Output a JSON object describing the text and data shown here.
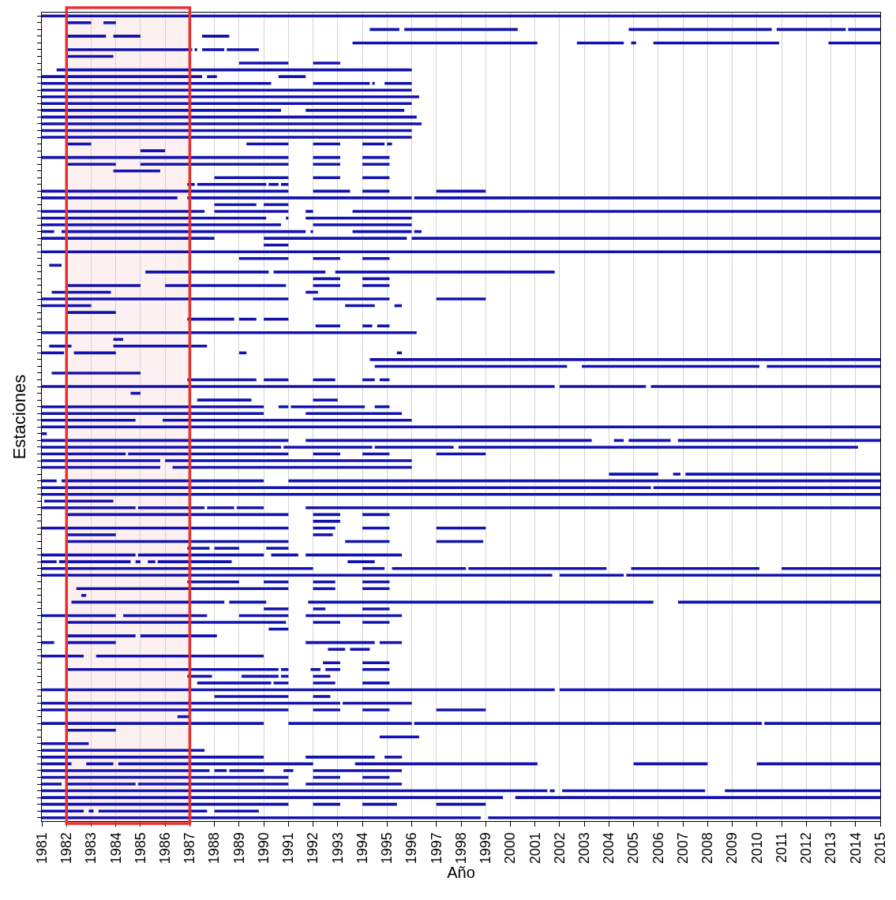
{
  "chart_data": {
    "type": "bar",
    "orientation": "horizontal",
    "xlabel": "Año",
    "ylabel": "Estaciones",
    "xlim": [
      1981,
      2015
    ],
    "xticks": [
      1981,
      1982,
      1983,
      1984,
      1985,
      1986,
      1987,
      1988,
      1989,
      1990,
      1991,
      1992,
      1993,
      1994,
      1995,
      1996,
      1997,
      1998,
      1999,
      2000,
      2001,
      2002,
      2003,
      2004,
      2005,
      2006,
      2007,
      2008,
      2009,
      2010,
      2011,
      2012,
      2013,
      2014,
      2015
    ],
    "grid": "x",
    "tick_labels": "x",
    "bands": [
      {
        "axis": "x",
        "from": 1982,
        "to": 1987,
        "color": "#e8312f"
      }
    ],
    "categories": [
      null,
      null,
      null,
      null,
      null,
      null,
      null,
      null,
      null,
      null,
      null,
      null,
      null,
      null,
      null,
      null,
      null,
      null,
      null,
      null,
      null,
      null,
      null,
      null,
      null,
      null,
      null,
      null,
      null,
      null,
      null,
      null,
      null,
      null,
      null,
      null,
      null,
      null,
      null,
      null,
      null,
      null,
      null,
      null,
      null,
      null,
      null,
      null,
      null,
      null,
      null,
      null,
      null,
      null,
      null,
      null,
      null,
      null,
      null,
      null,
      null,
      null,
      null,
      null,
      null,
      null,
      null,
      null,
      null,
      null,
      null,
      null,
      null,
      null,
      null,
      null,
      null,
      null,
      null,
      null,
      null,
      null,
      null,
      null,
      null,
      null,
      null,
      null,
      null,
      null,
      null,
      null,
      null,
      null,
      null,
      null,
      null,
      null,
      null,
      null,
      null,
      null,
      null,
      null,
      null,
      null,
      null,
      null,
      null,
      null,
      null,
      null,
      null,
      null,
      null,
      null,
      null,
      null,
      null,
      null
    ],
    "series": [
      {
        "color": "#1212b0",
        "base": [
          1981,
          1982,
          1994.3,
          1982,
          1993.6,
          1982,
          1982,
          1989,
          1981.6,
          1981,
          1981,
          1981,
          1981,
          1981,
          1981,
          1981,
          1981,
          1981,
          1981,
          1982,
          1985,
          1981,
          1982,
          1983.9,
          1988,
          1986.9,
          1981,
          1981,
          1988,
          1981,
          1981,
          1981,
          1981,
          1981,
          1990,
          1981,
          1989,
          1981.3,
          1985.2,
          1992,
          1982,
          1981.4,
          1981,
          1981,
          1982,
          1986.9,
          1992.1,
          1981,
          1983.9,
          1981.3,
          1981,
          1994.3,
          1994.5,
          1981.4,
          1986.9,
          1981,
          1984.6,
          1987.3,
          1981,
          1981,
          1981,
          1981,
          1981,
          1981,
          1981,
          1981,
          1981,
          1981,
          2004,
          1981,
          1981,
          1981,
          1981.1,
          1981,
          1982,
          1992,
          1981,
          1982,
          1982,
          1986.9,
          1981,
          1981,
          1981,
          1981,
          1986.9,
          1982.4,
          1982.6,
          1982.2,
          1990,
          1981,
          1982,
          1990.2,
          1982,
          1981,
          1992.6,
          1981,
          1992.4,
          1982,
          1986.9,
          1987.3,
          1981,
          1988,
          1981,
          1981,
          1986.5,
          1981,
          1982,
          1994.7,
          1981,
          1981,
          1981,
          1981,
          1981,
          1981,
          1981,
          1981,
          1981,
          1981,
          1981,
          1981
        ],
        "values": [
          34,
          1,
          1.2,
          1.6,
          7.5,
          5.1,
          1.9,
          2,
          14.4,
          6.5,
          9.3,
          15,
          15.3,
          15,
          9.7,
          15.2,
          15.4,
          15,
          15,
          1,
          1,
          10,
          2,
          1.9,
          3,
          0.3,
          10,
          5.5,
          1.7,
          6.6,
          9.1,
          9.7,
          0.5,
          7,
          1,
          34,
          2,
          0.5,
          5,
          1.1,
          3,
          2.4,
          10,
          2,
          2,
          1.9,
          1,
          15.2,
          0.4,
          0.9,
          0.9,
          20.7,
          7.8,
          3.6,
          2.8,
          20.8,
          0.4,
          2.2,
          9,
          9,
          3.8,
          34,
          0.2,
          10,
          9.7,
          3.4,
          4.8,
          4.8,
          2,
          0.6,
          24.7,
          34,
          2.8,
          3.8,
          9,
          1.1,
          10,
          2,
          9,
          0.9,
          3.8,
          0.6,
          11,
          20.7,
          2.1,
          8.6,
          0.2,
          6.2,
          1,
          3,
          8.9,
          0.8,
          2.8,
          0.5,
          0.7,
          1.7,
          0.7,
          8.6,
          1,
          3,
          20.8,
          3,
          12.1,
          10,
          0.5,
          9,
          2,
          1.6,
          1.9,
          6.6,
          9,
          1.2,
          6.8,
          10,
          0.8,
          20.5,
          18.7,
          10,
          1.7,
          17.8
        ]
      },
      {
        "color": "#1212b0",
        "base": [
          null,
          1983.5,
          1995.7,
          1983.9,
          2002.7,
          1987.2,
          null,
          1992,
          null,
          1987.7,
          1992,
          null,
          null,
          null,
          1991.7,
          null,
          null,
          null,
          null,
          1989.3,
          null,
          1992,
          1985,
          null,
          1992,
          1987.3,
          1992,
          1986.9,
          1990,
          1988,
          1990.9,
          1992,
          1981.8,
          1990,
          null,
          null,
          1992,
          null,
          1990.4,
          1994,
          1986,
          1991.7,
          1992,
          1993.3,
          null,
          1989,
          1994,
          null,
          null,
          1983.9,
          1982.3,
          null,
          2002.9,
          null,
          1990,
          2002,
          null,
          1992,
          1990.6,
          1991.7,
          1985.9,
          null,
          null,
          1991.7,
          1990.8,
          1984.5,
          1986,
          1986.3,
          2006.6,
          1981.8,
          2005.8,
          null,
          null,
          1984.9,
          1992,
          null,
          1992,
          1992,
          1993.3,
          1988,
          1984.9,
          1981.7,
          1994,
          2002,
          1990,
          1992,
          null,
          1988.6,
          1992,
          1984.3,
          1992,
          null,
          1985,
          1982,
          1993.5,
          1983.2,
          1994,
          1990.7,
          1989.1,
          1990.4,
          2002,
          1992,
          1993.2,
          1992,
          null,
          1991,
          null,
          null,
          null,
          null,
          1991.7,
          1982.8,
          1988,
          1992,
          1982,
          2001.6,
          2000.2,
          1992,
          1982.9,
          1999.1
        ],
        "values": [
          null,
          0.5,
          4.6,
          1.1,
          1.9,
          0.1,
          null,
          1.1,
          null,
          0.4,
          2.3,
          null,
          null,
          null,
          4,
          null,
          null,
          null,
          null,
          1.7,
          null,
          1.1,
          6,
          null,
          1.1,
          2.8,
          1.5,
          9.1,
          1,
          3,
          0.1,
          4,
          9.9,
          5.8,
          null,
          null,
          1.1,
          null,
          2.1,
          1.1,
          4.9,
          0.5,
          3.1,
          1.2,
          null,
          0.7,
          0.4,
          null,
          null,
          3.8,
          1.7,
          null,
          7.2,
          null,
          1,
          3.5,
          null,
          1,
          0.4,
          3.9,
          10.1,
          null,
          null,
          11.6,
          3.6,
          6.5,
          10,
          9.7,
          0.3,
          8.2,
          9.2,
          null,
          null,
          2.7,
          1.1,
          null,
          0.9,
          0.8,
          1.8,
          1,
          5.1,
          2.9,
          0.9,
          2.6,
          1,
          0.9,
          null,
          1.5,
          0.5,
          3.4,
          1.1,
          null,
          3.1,
          2,
          0.8,
          6.8,
          1.1,
          0.3,
          1.5,
          0.6,
          13,
          0.7,
          2.8,
          1.1,
          null,
          5,
          null,
          null,
          null,
          null,
          2.8,
          1.1,
          0.5,
          1.1,
          2.8,
          0.2,
          14.8,
          1.1,
          0.2,
          15.9
        ]
      },
      {
        "color": "#1212b0",
        "base": [
          null,
          null,
          2004.8,
          1987.5,
          2004.9,
          1987.5,
          null,
          null,
          null,
          1990.6,
          1994.4,
          null,
          null,
          null,
          null,
          null,
          null,
          null,
          null,
          1992,
          null,
          1994,
          1992,
          null,
          1994,
          1990.2,
          1994,
          1996.1,
          null,
          1991.7,
          1991.7,
          null,
          1991.9,
          1996,
          null,
          null,
          1994,
          null,
          1992.9,
          null,
          1992,
          null,
          1997,
          1995.3,
          null,
          1990,
          1994.6,
          null,
          null,
          null,
          1989,
          null,
          2010.4,
          null,
          1992,
          2005.7,
          null,
          null,
          1991.1,
          null,
          null,
          null,
          null,
          2004.2,
          1994.5,
          1992,
          null,
          null,
          2007.1,
          1991,
          null,
          null,
          null,
          1987.7,
          1994,
          null,
          1994,
          null,
          1997,
          1990.1,
          1990.3,
          1984.8,
          1995.2,
          2004.7,
          1992,
          1994,
          null,
          1991.8,
          1994,
          1989,
          1994,
          null,
          null,
          1991.7,
          null,
          null,
          null,
          1991.9,
          1990.7,
          1992,
          null,
          null,
          null,
          1994,
          null,
          1996.1,
          null,
          null,
          null,
          null,
          1994.9,
          1984.1,
          1988.6,
          1994,
          1984.9,
          2002.1,
          null,
          1994,
          1983.3,
          null
        ],
        "values": [
          null,
          null,
          5.8,
          1.1,
          0.2,
          0.9,
          null,
          null,
          null,
          1.1,
          0.1,
          null,
          null,
          null,
          null,
          null,
          null,
          null,
          null,
          1.1,
          null,
          1.1,
          1.1,
          null,
          1.1,
          0.4,
          1.1,
          18.9,
          null,
          0.3,
          4.3,
          null,
          0.1,
          19,
          null,
          null,
          1.1,
          null,
          8.9,
          null,
          1.1,
          null,
          2,
          0.3,
          null,
          1,
          0.5,
          null,
          null,
          null,
          0.3,
          null,
          4.6,
          null,
          0.9,
          9.3,
          null,
          null,
          3,
          null,
          null,
          null,
          null,
          0.4,
          3.2,
          1.1,
          null,
          null,
          7.9,
          24,
          null,
          null,
          null,
          1.1,
          1.1,
          null,
          1.1,
          null,
          1.9,
          0.9,
          1.1,
          0.2,
          3,
          10.3,
          0.9,
          1.1,
          null,
          14,
          1.1,
          2,
          1.1,
          null,
          null,
          2.8,
          null,
          null,
          null,
          0.4,
          0.3,
          0.9,
          null,
          null,
          null,
          1.1,
          null,
          14.1,
          null,
          null,
          null,
          null,
          0.7,
          7.9,
          1.4,
          1.1,
          6.1,
          5.8,
          null,
          1.4,
          4.4,
          null
        ]
      },
      {
        "color": "#1212b0",
        "base": [
          null,
          null,
          2010.8,
          null,
          2005.8,
          1988.5,
          null,
          null,
          null,
          null,
          1994.9,
          null,
          null,
          null,
          null,
          null,
          null,
          null,
          null,
          1994,
          null,
          null,
          1994,
          null,
          null,
          1990.7,
          1997,
          null,
          null,
          1993.6,
          null,
          null,
          1993.6,
          null,
          null,
          null,
          null,
          null,
          null,
          null,
          1994,
          null,
          null,
          null,
          null,
          null,
          null,
          null,
          null,
          null,
          1995.4,
          null,
          null,
          null,
          1994,
          null,
          null,
          null,
          1994.5,
          null,
          null,
          null,
          null,
          2004.8,
          1997.9,
          1994,
          null,
          null,
          null,
          null,
          null,
          null,
          null,
          1988.9,
          null,
          null,
          1997,
          null,
          null,
          null,
          1991.7,
          1985.3,
          1998.3,
          null,
          1994,
          null,
          null,
          2006.8,
          null,
          1991.7,
          null,
          null,
          null,
          1994.7,
          null,
          null,
          null,
          1992.5,
          1992,
          1994,
          null,
          null,
          null,
          1997,
          null,
          2010.3,
          null,
          null,
          null,
          null,
          null,
          1993.7,
          1990.8,
          null,
          1991.7,
          2008.7,
          null,
          1997,
          1988,
          null
        ],
        "values": [
          null,
          null,
          2.8,
          null,
          5.1,
          1.3,
          null,
          null,
          null,
          null,
          1.1,
          null,
          null,
          null,
          null,
          null,
          null,
          null,
          null,
          0.9,
          null,
          null,
          1.1,
          null,
          null,
          0.3,
          2,
          null,
          null,
          21.4,
          null,
          null,
          2.4,
          null,
          null,
          null,
          null,
          null,
          null,
          null,
          1.1,
          null,
          null,
          null,
          null,
          null,
          null,
          null,
          null,
          null,
          0.2,
          null,
          null,
          null,
          0.5,
          null,
          null,
          null,
          0.6,
          null,
          null,
          null,
          null,
          1.7,
          16.2,
          1.1,
          null,
          null,
          null,
          null,
          null,
          null,
          null,
          1.1,
          null,
          null,
          2,
          null,
          null,
          null,
          3.9,
          0.3,
          5.6,
          null,
          1.1,
          null,
          null,
          8.2,
          null,
          3.9,
          null,
          null,
          null,
          0.9,
          null,
          null,
          null,
          0.6,
          0.7,
          1.1,
          null,
          null,
          null,
          2,
          null,
          4.7,
          null,
          null,
          null,
          null,
          null,
          7.4,
          0.4,
          null,
          3.9,
          6.3,
          null,
          2,
          1.8,
          null
        ]
      },
      {
        "color": "#1212b0",
        "base": [
          null,
          null,
          2013.7,
          null,
          2012.9,
          null,
          null,
          null,
          null,
          null,
          null,
          null,
          null,
          null,
          null,
          null,
          null,
          null,
          null,
          1995,
          null,
          null,
          null,
          null,
          null,
          null,
          null,
          null,
          null,
          null,
          null,
          null,
          1996.1,
          null,
          null,
          null,
          null,
          null,
          null,
          null,
          null,
          null,
          null,
          null,
          null,
          null,
          null,
          null,
          null,
          null,
          null,
          null,
          null,
          null,
          1994.7,
          null,
          null,
          null,
          null,
          null,
          null,
          null,
          null,
          2006.8,
          null,
          1997,
          null,
          null,
          null,
          null,
          null,
          null,
          null,
          1991.7,
          null,
          null,
          null,
          null,
          null,
          null,
          null,
          1985.7,
          2004.9,
          null,
          null,
          null,
          null,
          null,
          null,
          null,
          null,
          null,
          null,
          null,
          null,
          null,
          null,
          1994,
          null,
          null,
          null,
          null,
          null,
          null,
          null,
          null,
          null,
          null,
          null,
          null,
          null,
          2005,
          1992,
          null,
          null,
          null,
          null,
          null,
          null,
          null
        ],
        "values": [
          null,
          null,
          1.3,
          null,
          2.1,
          null,
          null,
          null,
          null,
          null,
          null,
          null,
          null,
          null,
          null,
          null,
          null,
          null,
          null,
          0.2,
          null,
          null,
          null,
          null,
          null,
          null,
          null,
          null,
          null,
          null,
          null,
          null,
          0.3,
          null,
          null,
          null,
          null,
          null,
          null,
          null,
          null,
          null,
          null,
          null,
          null,
          null,
          null,
          null,
          null,
          null,
          null,
          null,
          null,
          null,
          0.4,
          null,
          null,
          null,
          null,
          null,
          null,
          null,
          null,
          8.2,
          null,
          2,
          null,
          null,
          null,
          null,
          null,
          null,
          null,
          23.3,
          null,
          null,
          null,
          null,
          null,
          null,
          null,
          3,
          5.2,
          null,
          null,
          null,
          null,
          null,
          null,
          null,
          null,
          null,
          null,
          null,
          null,
          null,
          null,
          1.1,
          null,
          null,
          null,
          null,
          null,
          null,
          null,
          null,
          null,
          null,
          null,
          null,
          null,
          3,
          3.6,
          null,
          null,
          null,
          null,
          null,
          null,
          null
        ]
      },
      {
        "color": "#1212b0",
        "base": [
          null,
          null,
          null,
          null,
          null,
          null,
          null,
          null,
          null,
          null,
          null,
          null,
          null,
          null,
          null,
          null,
          null,
          null,
          null,
          null,
          null,
          null,
          null,
          null,
          null,
          null,
          null,
          null,
          null,
          null,
          null,
          null,
          null,
          null,
          null,
          null,
          null,
          null,
          null,
          null,
          null,
          null,
          null,
          null,
          null,
          null,
          null,
          null,
          null,
          null,
          null,
          null,
          null,
          null,
          null,
          null,
          null,
          null,
          null,
          null,
          null,
          null,
          null,
          null,
          null,
          null,
          null,
          null,
          null,
          null,
          null,
          null,
          null,
          null,
          null,
          null,
          null,
          null,
          null,
          null,
          null,
          1993.4,
          2011,
          null,
          null,
          null,
          null,
          null,
          null,
          null,
          null,
          null,
          null,
          null,
          null,
          null,
          null,
          null,
          null,
          null,
          null,
          null,
          null,
          null,
          null,
          null,
          null,
          null,
          null,
          null,
          null,
          2010,
          null,
          null,
          null,
          null,
          null,
          null,
          null,
          null
        ],
        "values": [
          null,
          null,
          null,
          null,
          null,
          null,
          null,
          null,
          null,
          null,
          null,
          null,
          null,
          null,
          null,
          null,
          null,
          null,
          null,
          null,
          null,
          null,
          null,
          null,
          null,
          null,
          null,
          null,
          null,
          null,
          null,
          null,
          null,
          null,
          null,
          null,
          null,
          null,
          null,
          null,
          null,
          null,
          null,
          null,
          null,
          null,
          null,
          null,
          null,
          null,
          null,
          null,
          null,
          null,
          null,
          null,
          null,
          null,
          null,
          null,
          null,
          null,
          null,
          null,
          null,
          null,
          null,
          null,
          null,
          null,
          null,
          null,
          null,
          null,
          null,
          null,
          null,
          null,
          null,
          null,
          null,
          1.1,
          4,
          null,
          null,
          null,
          null,
          null,
          null,
          null,
          null,
          null,
          null,
          null,
          null,
          null,
          null,
          null,
          null,
          null,
          null,
          null,
          null,
          null,
          null,
          null,
          null,
          null,
          null,
          null,
          null,
          5,
          null,
          null,
          null,
          null,
          null,
          null,
          null,
          null
        ]
      }
    ]
  }
}
